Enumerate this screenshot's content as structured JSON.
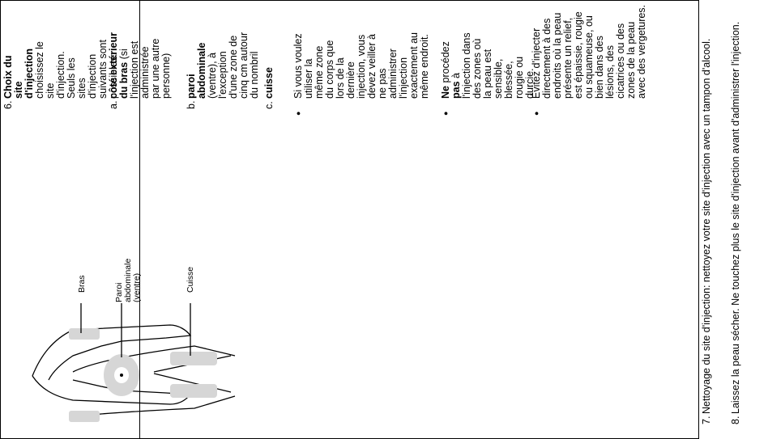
{
  "row6": {
    "number": "6.",
    "heading": "Choix du site d'injection",
    "intro": "choisissez le site d'injection. Seuls les sites d'injection suivants sont possibles:",
    "sites": [
      {
        "letter": "a.",
        "bold": "côté extérieur du bras",
        "rest": " (si l'injection est administrée par une autre personne)"
      },
      {
        "letter": "b.",
        "bold": "paroi abdominale",
        "rest": " (ventre), à l'exception d'une zone de cinq cm autour du nombril"
      },
      {
        "letter": "c.",
        "bold": "cuisse",
        "rest": ""
      }
    ],
    "bullets": [
      {
        "bold": "",
        "rest": "Si vous voulez utiliser la même zone du corps que lors de la dernière injection, vous devez veiller à ne pas administrer l'injection exactement au même endroit."
      },
      {
        "bold": "Ne",
        "mid": " procédez ",
        "bold2": "pas",
        "rest": " à l'injection dans des zones où la peau est sensible, blessée, rougie ou durcie."
      },
      {
        "bold": "",
        "rest": "Évitez d'injecter directement à des endroits où la peau présente un relief, est épaissie, rougie ou squameuse, ou bien dans des lésions, des cicatrices ou des zones de la peau avec des vergetures."
      }
    ],
    "bullet_glyph": "●"
  },
  "figure": {
    "labels": [
      "Bras",
      "Paroi abdominale (ventre)",
      "Cuisse"
    ],
    "skin_color": "#d6d6d6"
  },
  "steps": [
    {
      "number": "7.",
      "text": "Nettoyage du site d'injection: nettoyez votre site d'injection avec un tampon d'alcool."
    },
    {
      "number": "8.",
      "text": "Laissez la peau sécher. Ne touchez plus le site d'injection avant d'administrer l'injection."
    }
  ]
}
